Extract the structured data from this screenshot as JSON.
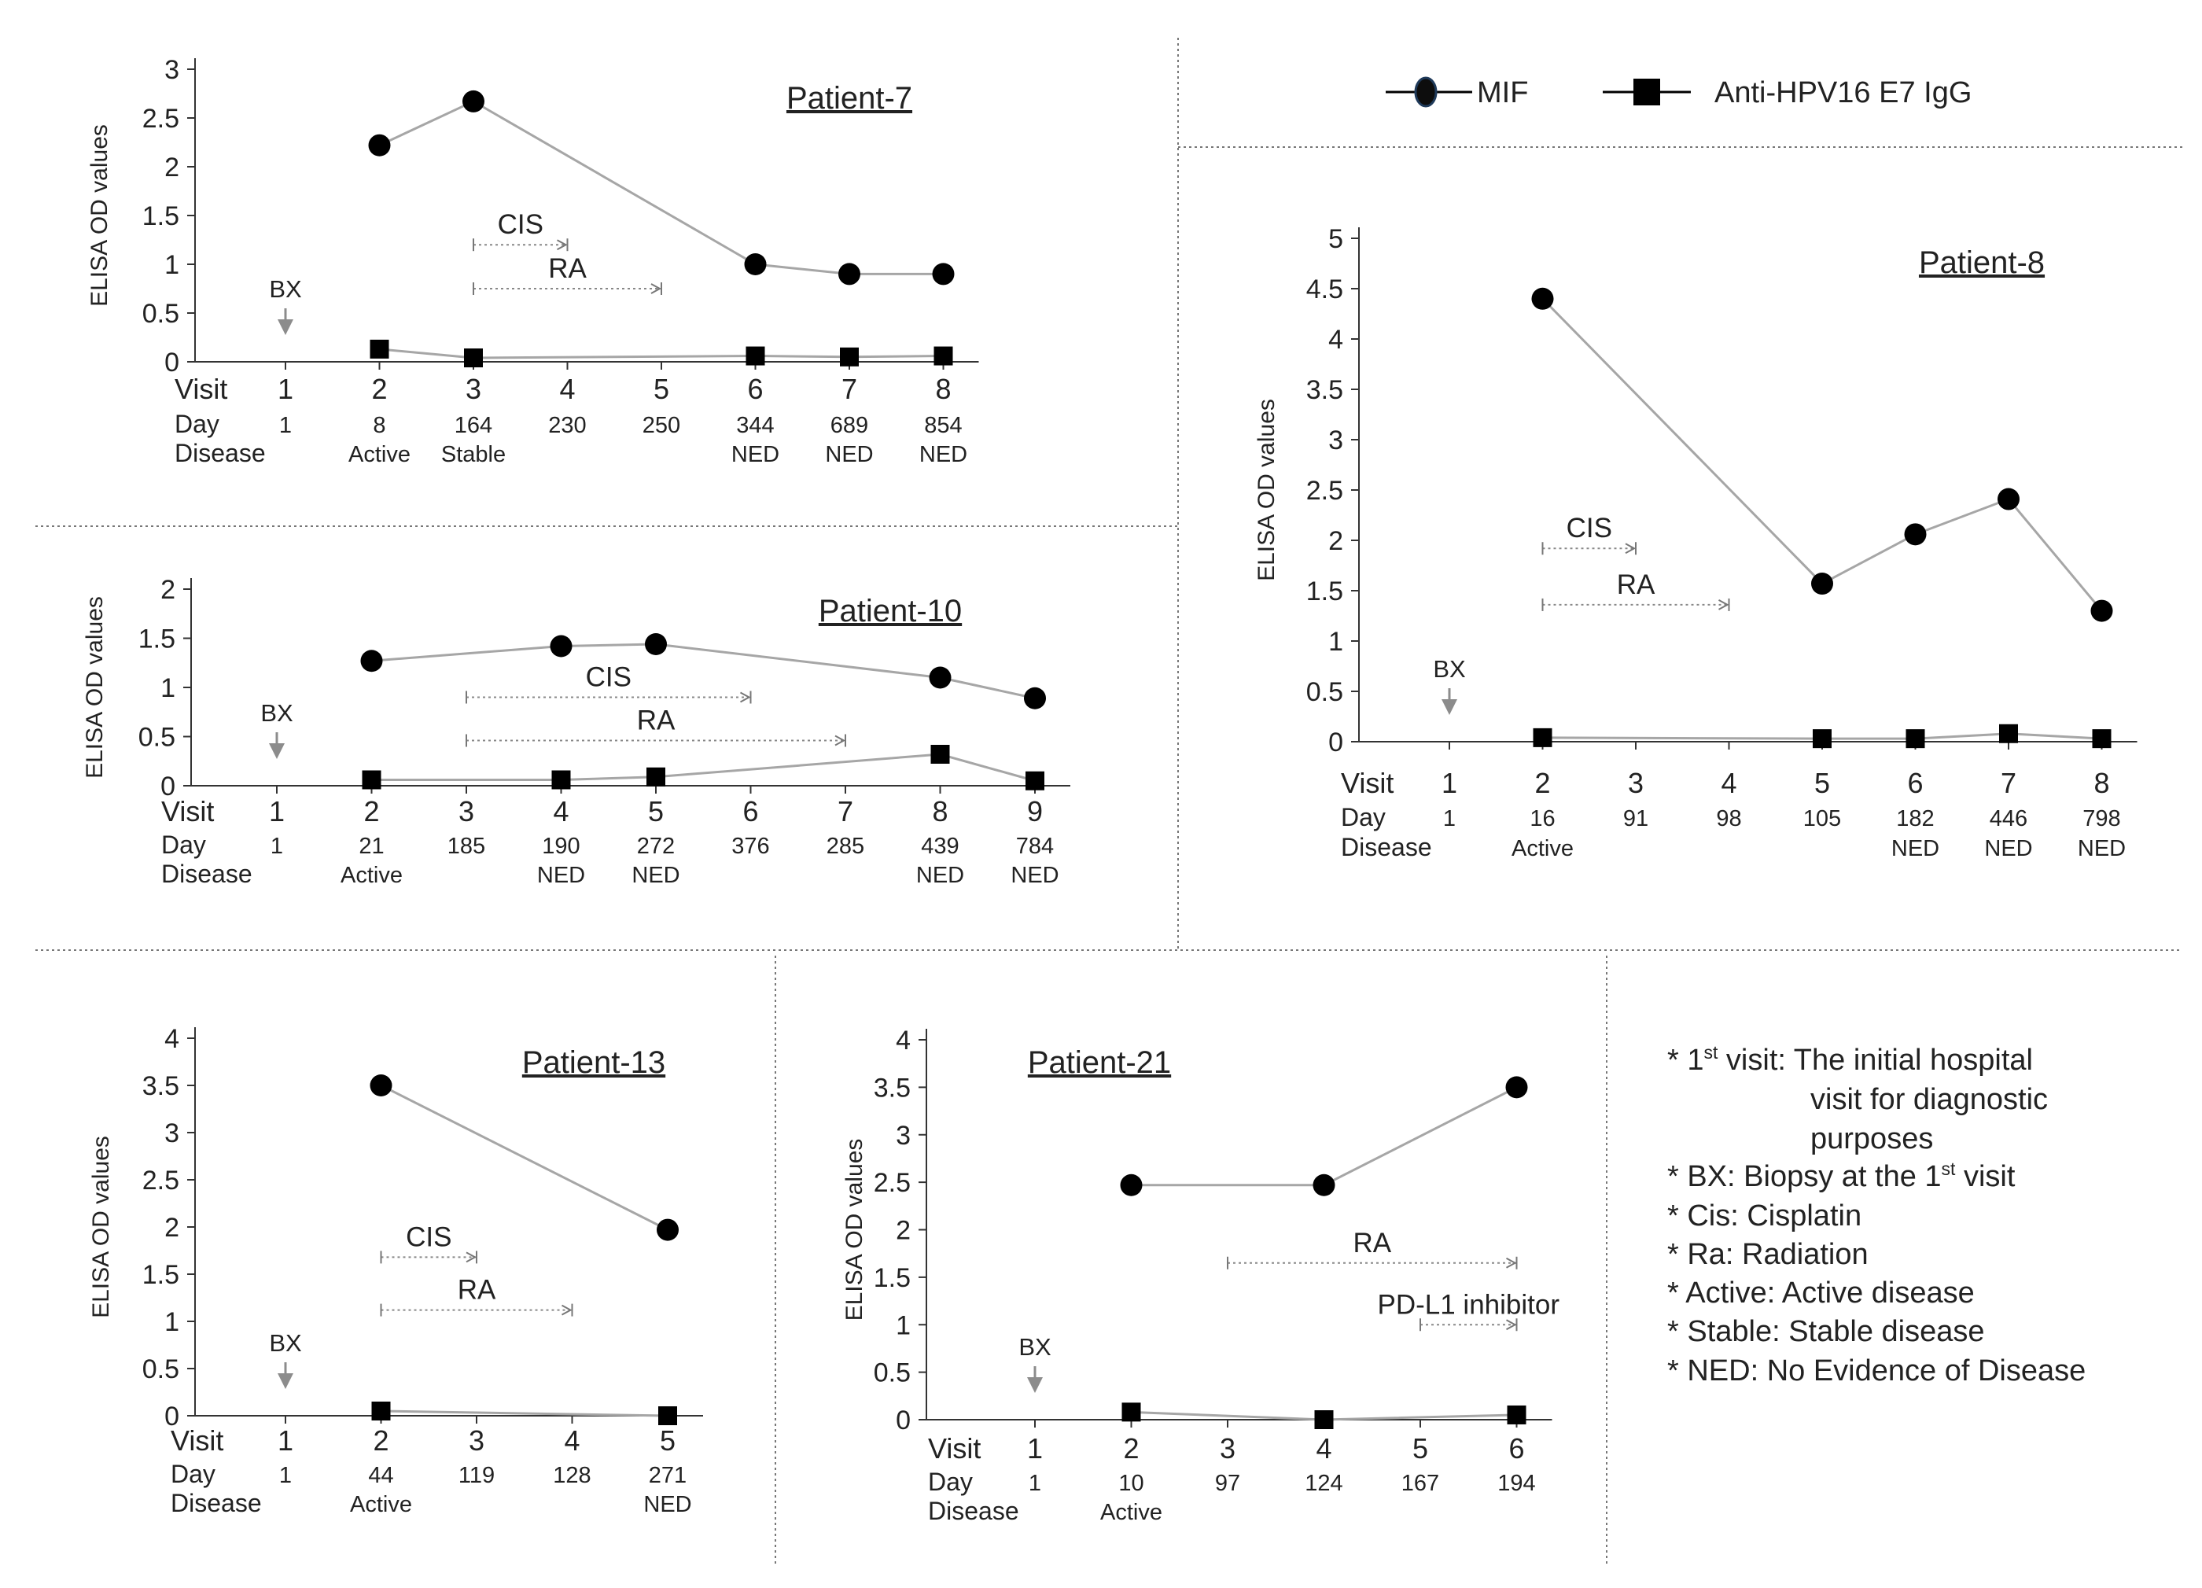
{
  "legend": {
    "items": [
      {
        "name": "MIF",
        "marker": "circle"
      },
      {
        "name": "Anti-HPV16 E7 IgG",
        "marker": "square"
      }
    ]
  },
  "row_labels": {
    "visit": "Visit",
    "day": "Day",
    "disease": "Disease"
  },
  "notes": [
    {
      "pre": "* 1",
      "sup": "st",
      "post": " visit:  The initial hospital"
    },
    {
      "pre": "visit for diagnostic",
      "sup": "",
      "post": ""
    },
    {
      "pre": "purposes",
      "sup": "",
      "post": ""
    },
    {
      "pre": "* BX:   Biopsy at the 1",
      "sup": "st",
      "post": " visit"
    },
    {
      "pre": "* Cis:  Cisplatin",
      "sup": "",
      "post": ""
    },
    {
      "pre": "* Ra:  Radiation",
      "sup": "",
      "post": ""
    },
    {
      "pre": "* Active: Active disease",
      "sup": "",
      "post": ""
    },
    {
      "pre": "* Stable: Stable disease",
      "sup": "",
      "post": ""
    },
    {
      "pre": "* NED: No Evidence of Disease",
      "sup": "",
      "post": ""
    }
  ],
  "colors": {
    "marker": "#000000",
    "line": "#a6a6a6",
    "bx_arrow": "#8c8c8c",
    "treatment_line": "#888888"
  },
  "chart_data": [
    {
      "type": "line",
      "title": "Patient-7",
      "ylabel": "ELISA OD values",
      "ylim": [
        0,
        3
      ],
      "yticks": [
        0,
        0.5,
        1,
        1.5,
        2,
        2.5,
        3
      ],
      "ytick_labels": [
        "0",
        "0.5",
        "1",
        "1.5",
        "2",
        "2.5",
        "3"
      ],
      "visits": [
        "1",
        "2",
        "3",
        "4",
        "5",
        "6",
        "7",
        "8"
      ],
      "days": [
        "1",
        "8",
        "164",
        "230",
        "250",
        "344",
        "689",
        "854"
      ],
      "disease": [
        "",
        "Active",
        "Stable",
        "",
        "",
        "NED",
        "NED",
        "NED"
      ],
      "biopsy": {
        "label": "BX",
        "visit": 1
      },
      "series": [
        {
          "name": "MIF",
          "x": [
            2,
            3,
            6,
            7,
            8
          ],
          "values": [
            2.22,
            2.67,
            1.0,
            0.9,
            0.9
          ]
        },
        {
          "name": "Anti-HPV16 E7 IgG",
          "x": [
            2,
            3,
            6,
            7,
            8
          ],
          "values": [
            0.13,
            0.04,
            0.06,
            0.05,
            0.06
          ]
        }
      ],
      "treatments": [
        {
          "label": "CIS",
          "start": 3,
          "end": 4,
          "y": 1.2
        },
        {
          "label": "RA",
          "start": 3,
          "end": 5,
          "y": 0.75
        }
      ]
    },
    {
      "type": "line",
      "title": "Patient-10",
      "ylabel": "ELISA OD values",
      "ylim": [
        0,
        2
      ],
      "yticks": [
        0,
        0.5,
        1,
        1.5,
        2
      ],
      "ytick_labels": [
        "0",
        "0.5",
        "1",
        "1.5",
        "2"
      ],
      "visits": [
        "1",
        "2",
        "3",
        "4",
        "5",
        "6",
        "7",
        "8",
        "9"
      ],
      "days": [
        "1",
        "21",
        "185",
        "190",
        "272",
        "376",
        "285",
        "439",
        "784"
      ],
      "disease": [
        "",
        "Active",
        "",
        "NED",
        "NED",
        "",
        "",
        "NED",
        "NED"
      ],
      "biopsy": {
        "label": "BX",
        "visit": 1
      },
      "series": [
        {
          "name": "MIF",
          "x": [
            2,
            4,
            5,
            8,
            9
          ],
          "values": [
            1.27,
            1.42,
            1.44,
            1.1,
            0.89
          ]
        },
        {
          "name": "Anti-HPV16 E7 IgG",
          "x": [
            2,
            4,
            5,
            8,
            9
          ],
          "values": [
            0.06,
            0.06,
            0.09,
            0.32,
            0.05
          ]
        }
      ],
      "treatments": [
        {
          "label": "CIS",
          "start": 3,
          "end": 6,
          "y": 0.9
        },
        {
          "label": "RA",
          "start": 3,
          "end": 7,
          "y": 0.46
        }
      ]
    },
    {
      "type": "line",
      "title": "Patient-8",
      "ylabel": "ELISA OD values",
      "ylim": [
        0,
        5
      ],
      "yticks": [
        0,
        0.5,
        1,
        1.5,
        2,
        2.5,
        3,
        3.5,
        4,
        4.5,
        5
      ],
      "ytick_labels": [
        "0",
        "0.5",
        "1",
        "1.5",
        "2",
        "2.5",
        "3",
        "3.5",
        "4",
        "4.5",
        "5"
      ],
      "visits": [
        "1",
        "2",
        "3",
        "4",
        "5",
        "6",
        "7",
        "8"
      ],
      "days": [
        "1",
        "16",
        "91",
        "98",
        "105",
        "182",
        "446",
        "798"
      ],
      "disease": [
        "",
        "Active",
        "",
        "",
        "",
        "NED",
        "NED",
        "NED"
      ],
      "biopsy": {
        "label": "BX",
        "visit": 1
      },
      "series": [
        {
          "name": "MIF",
          "x": [
            2,
            5,
            6,
            7,
            8
          ],
          "values": [
            4.4,
            1.57,
            2.06,
            2.41,
            1.3
          ]
        },
        {
          "name": "Anti-HPV16 E7 IgG",
          "x": [
            2,
            5,
            6,
            7,
            8
          ],
          "values": [
            0.04,
            0.03,
            0.03,
            0.08,
            0.03
          ]
        }
      ],
      "treatments": [
        {
          "label": "CIS",
          "start": 2,
          "end": 3,
          "y": 1.92
        },
        {
          "label": "RA",
          "start": 2,
          "end": 4,
          "y": 1.36
        }
      ]
    },
    {
      "type": "line",
      "title": "Patient-13",
      "ylabel": "ELISA OD values",
      "ylim": [
        0,
        4
      ],
      "yticks": [
        0,
        0.5,
        1,
        1.5,
        2,
        2.5,
        3,
        3.5,
        4
      ],
      "ytick_labels": [
        "0",
        "0.5",
        "1",
        "1.5",
        "2",
        "2.5",
        "3",
        "3.5",
        "4"
      ],
      "visits": [
        "1",
        "2",
        "3",
        "4",
        "5"
      ],
      "days": [
        "1",
        "44",
        "119",
        "128",
        "271"
      ],
      "disease": [
        "",
        "Active",
        "",
        "",
        "NED"
      ],
      "biopsy": {
        "label": "BX",
        "visit": 1
      },
      "series": [
        {
          "name": "MIF",
          "x": [
            2,
            5
          ],
          "values": [
            3.5,
            1.97
          ]
        },
        {
          "name": "Anti-HPV16 E7 IgG",
          "x": [
            2,
            5
          ],
          "values": [
            0.05,
            0.0
          ]
        }
      ],
      "treatments": [
        {
          "label": "CIS",
          "start": 2,
          "end": 3,
          "y": 1.68
        },
        {
          "label": "RA",
          "start": 2,
          "end": 4,
          "y": 1.12
        }
      ]
    },
    {
      "type": "line",
      "title": "Patient-21",
      "ylabel": "ELISA OD values",
      "ylim": [
        0,
        4
      ],
      "yticks": [
        0,
        0.5,
        1,
        1.5,
        2,
        2.5,
        3,
        3.5,
        4
      ],
      "ytick_labels": [
        "0",
        "0.5",
        "1",
        "1.5",
        "2",
        "2.5",
        "3",
        "3.5",
        "4"
      ],
      "visits": [
        "1",
        "2",
        "3",
        "4",
        "5",
        "6"
      ],
      "days": [
        "1",
        "10",
        "97",
        "124",
        "167",
        "194"
      ],
      "disease": [
        "",
        "Active",
        "",
        "",
        "",
        ""
      ],
      "biopsy": {
        "label": "BX",
        "visit": 1
      },
      "series": [
        {
          "name": "MIF",
          "x": [
            2,
            4,
            6
          ],
          "values": [
            2.47,
            2.47,
            3.5
          ]
        },
        {
          "name": "Anti-HPV16 E7 IgG",
          "x": [
            2,
            4,
            6
          ],
          "values": [
            0.08,
            0.0,
            0.05
          ]
        }
      ],
      "treatments": [
        {
          "label": "RA",
          "start": 3,
          "end": 6,
          "y": 1.65
        },
        {
          "label": "PD-L1 inhibitor",
          "start": 5,
          "end": 6,
          "y": 1.0
        }
      ]
    }
  ]
}
